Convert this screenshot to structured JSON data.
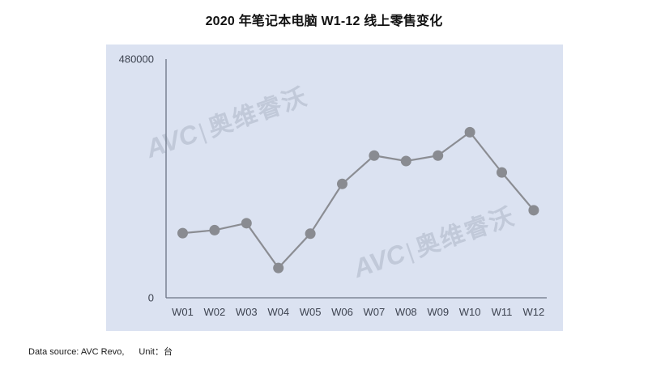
{
  "title": "2020 年笔记本电脑 W1-12 线上零售变化",
  "watermark": {
    "logo": "AVC",
    "divider": "|",
    "name": "奥维睿沃"
  },
  "footer": {
    "datasource": "Data source: AVC Revo,",
    "unit": "Unit：台"
  },
  "colors": {
    "panel_bg": "#dbe2f1",
    "axis": "#6b7485",
    "tick_label": "#3d4350",
    "line": "#8b8d93",
    "marker": "#898b91",
    "title": "#111111",
    "watermark": "#a5adbe"
  },
  "chart_data": {
    "type": "line",
    "title": "2020 年笔记本电脑 W1-12 线上零售变化",
    "categories": [
      "W01",
      "W02",
      "W03",
      "W04",
      "W05",
      "W06",
      "W07",
      "W08",
      "W09",
      "W10",
      "W11",
      "W12"
    ],
    "values": [
      130000,
      136000,
      150000,
      60000,
      129000,
      229000,
      286000,
      275000,
      286000,
      333000,
      252000,
      176000
    ],
    "xlabel": "",
    "ylabel": "",
    "ylim": [
      0,
      480000
    ],
    "yticks": [
      0,
      480000
    ],
    "ytick_labels": [
      "0",
      "480000"
    ],
    "grid": false,
    "legend": null,
    "marker": "circle",
    "marker_radius": 6.5,
    "line_width": 2.2
  }
}
